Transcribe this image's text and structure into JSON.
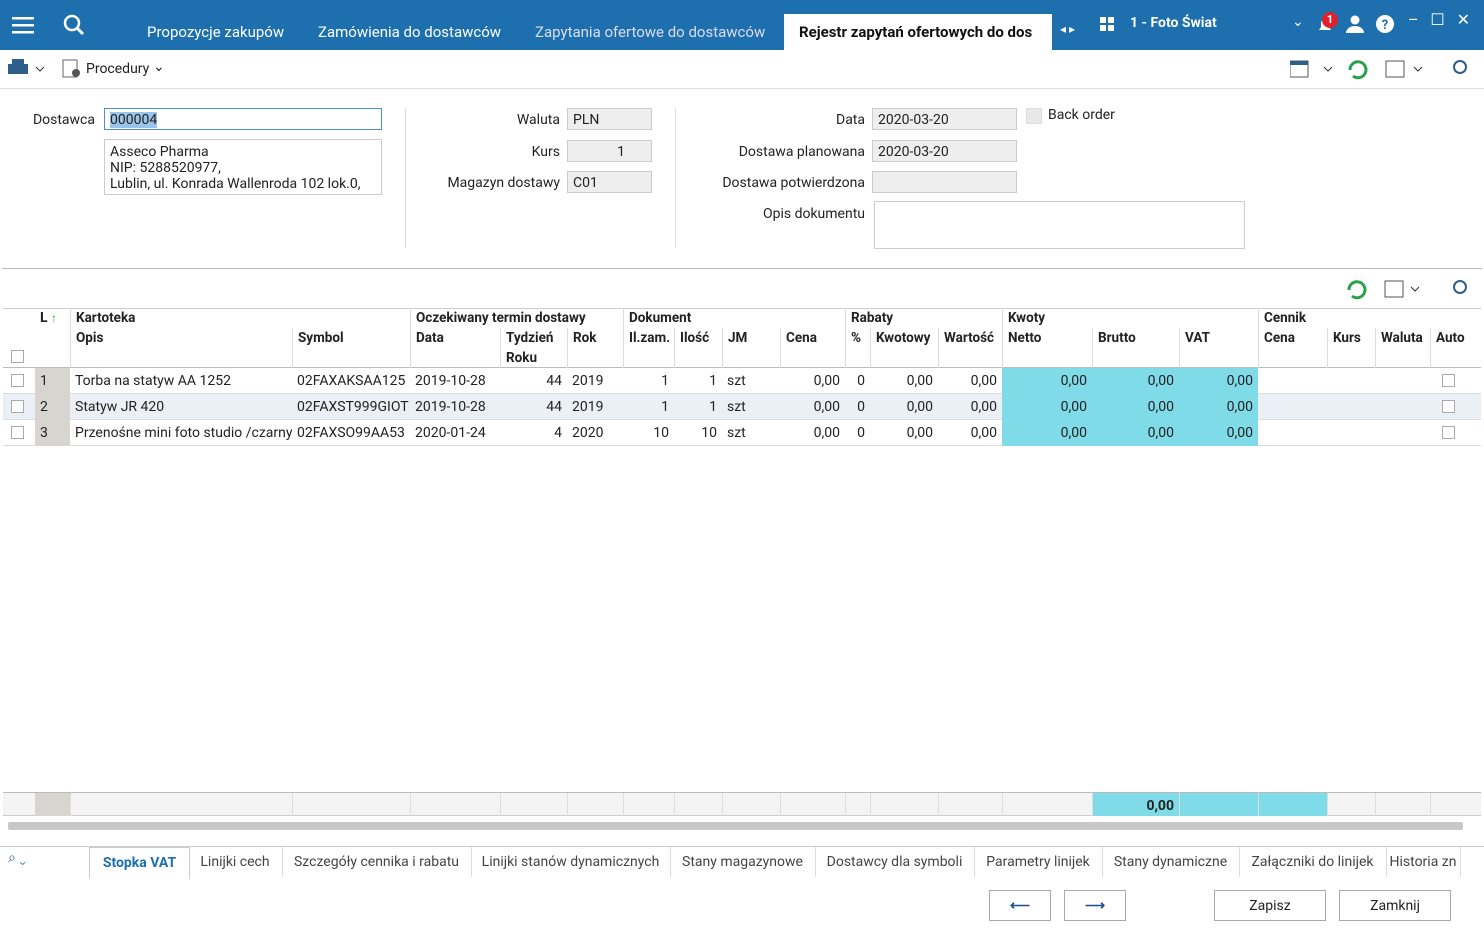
{
  "topbar": {
    "tabs": [
      "Propozycje zakupów",
      "Zamówienia do dostawców",
      "Zapytania ofertowe do dostawców",
      "Rejestr zapytań ofertowych do dos"
    ],
    "notifications": "1",
    "company": "1 - Foto Świat"
  },
  "toolbar": {
    "procedures": "Procedury"
  },
  "form": {
    "supplier_label": "Dostawca",
    "supplier_code": "000004",
    "supplier_address": [
      "Asseco Pharma",
      "NIP: 5288520977,",
      "Lublin, ul. Konrada Wallenroda 102 lok.0,"
    ],
    "currency_label": "Waluta",
    "currency": "PLN",
    "rate_label": "Kurs",
    "rate": "1",
    "warehouse_label": "Magazyn dostawy",
    "warehouse": "C01",
    "date_label": "Data",
    "date": "2020-03-20",
    "planned_label": "Dostawa planowana",
    "planned": "2020-03-20",
    "confirmed_label": "Dostawa potwierdzona",
    "description_label": "Opis dokumentu",
    "back_order": "Back order"
  },
  "grid": {
    "row_header": "L",
    "group_headers": [
      "Kartoteka",
      "Oczekiwany termin dostawy",
      "Dokument",
      "Rabaty",
      "Kwoty",
      "Cennik"
    ],
    "columns": [
      "Opis",
      "Symbol",
      "Data",
      "Tydzień Roku",
      "Rok",
      "Il.zam.",
      "Ilość",
      "JM",
      "Cena",
      "%",
      "Kwotowy",
      "Wartość",
      "Netto",
      "Brutto",
      "VAT",
      "Cena",
      "Kurs",
      "Waluta",
      "Auto"
    ],
    "rows": [
      [
        "1",
        "Torba na statyw AA 1252",
        "02FAXAKSAA125",
        "2019-10-28",
        "44",
        "2019",
        "1",
        "1",
        "szt",
        "0,00",
        "0",
        "0,00",
        "0,00",
        "0,00",
        "0,00",
        "0,00"
      ],
      [
        "2",
        "Statyw JR 420",
        "02FAXST999GIOT",
        "2019-10-28",
        "44",
        "2019",
        "1",
        "1",
        "szt",
        "0,00",
        "0",
        "0,00",
        "0,00",
        "0,00",
        "0,00",
        "0,00"
      ],
      [
        "3",
        "Przenośne mini foto studio /czarny",
        "02FAXSO99AA53",
        "2020-01-24",
        "4",
        "2020",
        "10",
        "10",
        "szt",
        "0,00",
        "0",
        "0,00",
        "0,00",
        "0,00",
        "0,00",
        "0,00"
      ]
    ],
    "footer_total": "0,00"
  },
  "bottom_tabs": [
    "Stopka VAT",
    "Linijki cech",
    "Szczegóły cennika i rabatu",
    "Linijki stanów dynamicznych",
    "Stany magazynowe",
    "Dostawcy dla symboli",
    "Parametry linijek",
    "Stany dynamiczne",
    "Załączniki do linijek",
    "Historia zn"
  ],
  "buttons": {
    "save": "Zapisz",
    "close": "Zamknij"
  }
}
